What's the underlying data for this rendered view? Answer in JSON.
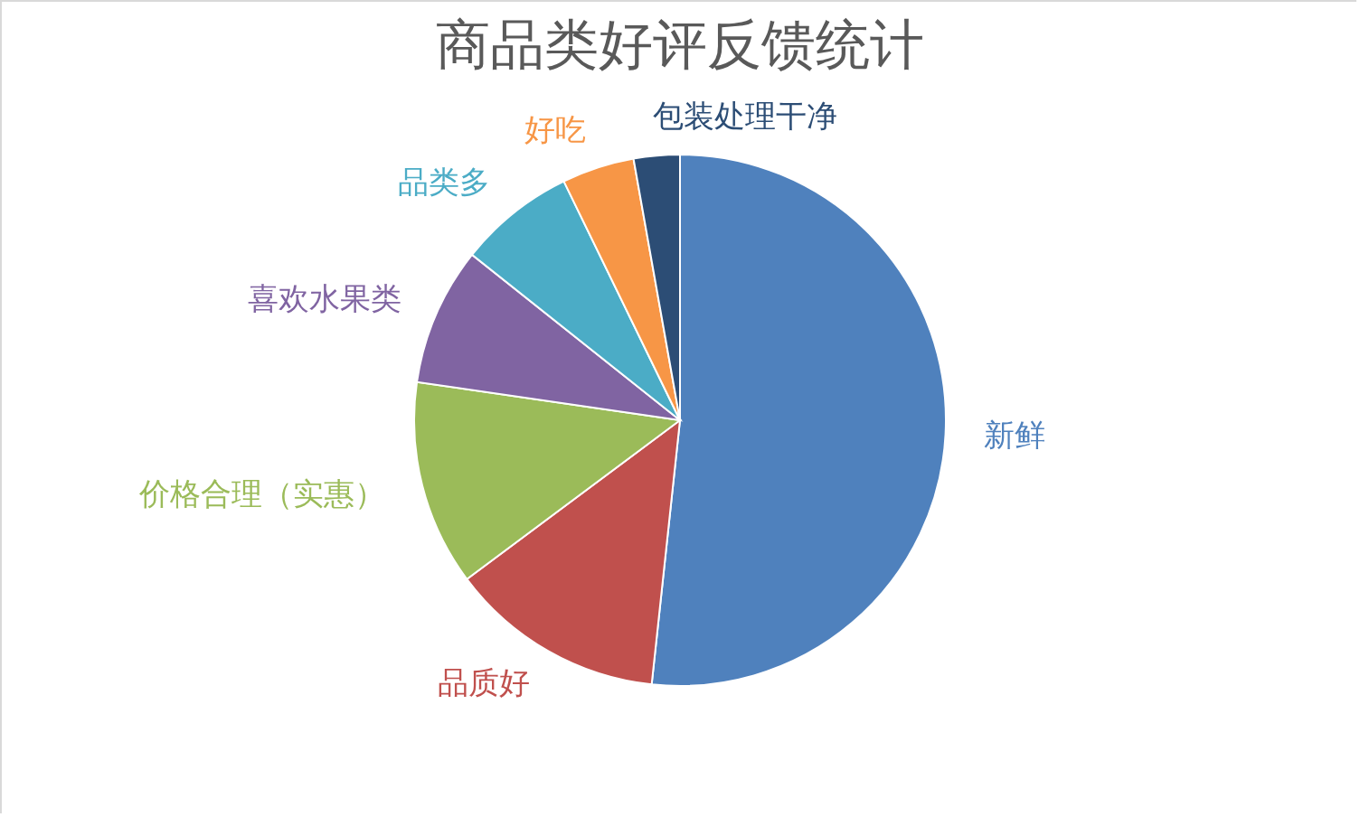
{
  "chart_data": {
    "type": "pie",
    "title": "商品类好评反馈统计",
    "categories": [
      "新鲜",
      "品质好",
      "价格合理（实惠）",
      "喜欢水果类",
      "品类多",
      "好吃",
      "包装处理干净"
    ],
    "values": [
      51.7,
      13.1,
      12.5,
      8.4,
      7.1,
      4.4,
      2.8
    ],
    "colors": [
      "#4f81bd",
      "#c0504d",
      "#9bbb59",
      "#8064a2",
      "#4bacc6",
      "#f79646",
      "#2c4d75"
    ],
    "legend": false
  }
}
